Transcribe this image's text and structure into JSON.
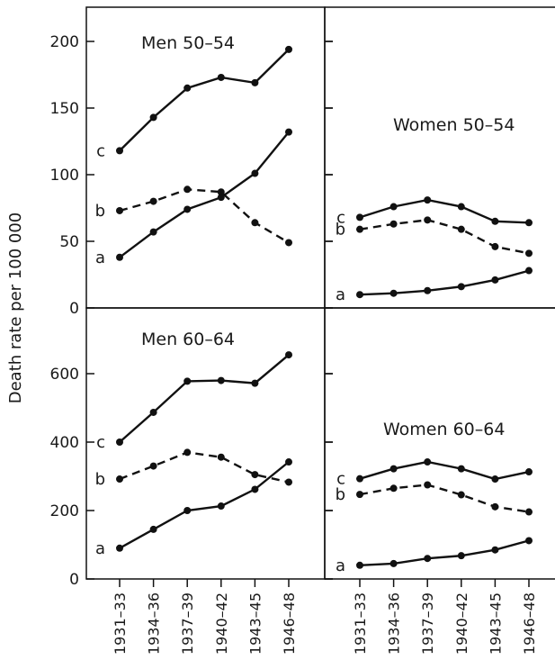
{
  "chart_data": {
    "type": "line",
    "ylabel": "Death rate per 100 000",
    "categories": [
      "1931–33",
      "1934–36",
      "1937–39",
      "1940–42",
      "1943–45",
      "1946–48"
    ],
    "panels": [
      {
        "title": "Men 50–54",
        "ylim": [
          0,
          225
        ],
        "yticks": [
          0,
          50,
          100,
          150,
          200
        ],
        "series": [
          {
            "name": "c",
            "dashed": false,
            "values": [
              118,
              143,
              165,
              173,
              169,
              194
            ]
          },
          {
            "name": "b",
            "dashed": true,
            "values": [
              73,
              80,
              89,
              87,
              64,
              49
            ]
          },
          {
            "name": "a",
            "dashed": false,
            "values": [
              38,
              57,
              74,
              83,
              101,
              132
            ]
          }
        ]
      },
      {
        "title": "Women 50–54",
        "ylim": [
          0,
          225
        ],
        "yticks": [
          0,
          50,
          100,
          150,
          200
        ],
        "series": [
          {
            "name": "c",
            "dashed": false,
            "values": [
              68,
              76,
              81,
              76,
              65,
              64
            ]
          },
          {
            "name": "b",
            "dashed": true,
            "values": [
              59,
              63,
              66,
              59,
              46,
              41
            ]
          },
          {
            "name": "a",
            "dashed": false,
            "values": [
              10,
              11,
              13,
              16,
              21,
              28
            ]
          }
        ]
      },
      {
        "title": "Men 60–64",
        "ylim": [
          0,
          750
        ],
        "yticks": [
          0,
          200,
          400,
          600
        ],
        "series": [
          {
            "name": "c",
            "dashed": false,
            "values": [
              400,
              487,
              578,
              580,
              572,
              655
            ]
          },
          {
            "name": "b",
            "dashed": true,
            "values": [
              292,
              330,
              370,
              356,
              305,
              283
            ]
          },
          {
            "name": "a",
            "dashed": false,
            "values": [
              90,
              145,
              200,
              213,
              262,
              342
            ]
          }
        ]
      },
      {
        "title": "Women 60–64",
        "ylim": [
          0,
          750
        ],
        "yticks": [
          0,
          200,
          400,
          600
        ],
        "series": [
          {
            "name": "c",
            "dashed": false,
            "values": [
              293,
              322,
              342,
              322,
              292,
              313
            ]
          },
          {
            "name": "b",
            "dashed": true,
            "values": [
              247,
              265,
              275,
              246,
              211,
              196
            ]
          },
          {
            "name": "a",
            "dashed": false,
            "values": [
              40,
              45,
              60,
              68,
              85,
              112
            ]
          }
        ]
      }
    ]
  }
}
